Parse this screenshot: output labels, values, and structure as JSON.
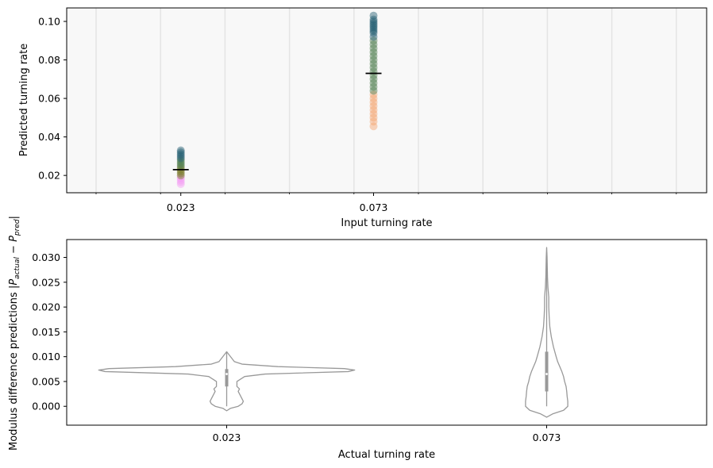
{
  "chart_data": [
    {
      "type": "scatter",
      "xlabel": "Input turning rate",
      "ylabel": "Predicted turning rate",
      "ylim": [
        0.011,
        0.107
      ],
      "yticks": [
        "0.02",
        "0.04",
        "0.06",
        "0.08",
        "0.10"
      ],
      "ytick_values": [
        0.02,
        0.04,
        0.06,
        0.08,
        0.1
      ],
      "xlim": [
        -0.0066,
        0.1594
      ],
      "xticks": [
        "0.023",
        "0.073"
      ],
      "xtick_values": [
        0.023,
        0.073
      ],
      "grid": "vertical",
      "series": [
        {
          "x": 0.023,
          "mean": 0.023,
          "values": [
            0.0155,
            0.0165,
            0.0175,
            0.0185,
            0.019,
            0.02,
            0.021,
            0.022,
            0.023,
            0.024,
            0.025,
            0.026,
            0.027,
            0.028,
            0.029,
            0.03,
            0.031,
            0.032,
            0.033
          ]
        },
        {
          "x": 0.073,
          "mean": 0.073,
          "values": [
            0.0455,
            0.048,
            0.05,
            0.052,
            0.054,
            0.056,
            0.058,
            0.06,
            0.062,
            0.064,
            0.066,
            0.068,
            0.07,
            0.072,
            0.074,
            0.076,
            0.078,
            0.08,
            0.082,
            0.084,
            0.086,
            0.088,
            0.09,
            0.092,
            0.094,
            0.095,
            0.096,
            0.097,
            0.098,
            0.099,
            0.1,
            0.101,
            0.103
          ]
        }
      ],
      "colors": {
        "low": "#f4a0f4",
        "olive": "#7a7a2a",
        "teal": "#1f5a6e",
        "green": "#4a7a4a",
        "orange": "#f4a26c",
        "mean_line": "#000000",
        "background": "#f8f8f8",
        "grid": "#e4e4e4"
      }
    },
    {
      "type": "violin",
      "xlabel": "Actual turning rate",
      "ylabel": "Modulus difference predictions |P_actual − P_pred|",
      "ylabel_parts": {
        "prefix": "Modulus difference predictions |",
        "p1": "P",
        "sub1": "actual",
        "minus": " − ",
        "p2": "P",
        "sub2": "pred",
        "suffix": "|"
      },
      "ylim": [
        -0.0038,
        0.0336
      ],
      "yticks": [
        "0.000",
        "0.005",
        "0.010",
        "0.015",
        "0.020",
        "0.025",
        "0.030"
      ],
      "ytick_values": [
        0,
        0.005,
        0.01,
        0.015,
        0.02,
        0.025,
        0.03
      ],
      "categories": [
        "0.023",
        "0.073"
      ],
      "violins": [
        {
          "category": "0.023",
          "profile": [
            [
              -0.0009,
              0
            ],
            [
              -0.0004,
              0.03
            ],
            [
              0.0,
              0.09
            ],
            [
              0.0005,
              0.12
            ],
            [
              0.001,
              0.13
            ],
            [
              0.002,
              0.11
            ],
            [
              0.003,
              0.09
            ],
            [
              0.0035,
              0.1
            ],
            [
              0.004,
              0.08
            ],
            [
              0.005,
              0.08
            ],
            [
              0.006,
              0.14
            ],
            [
              0.0065,
              0.3
            ],
            [
              0.007,
              0.95
            ],
            [
              0.0073,
              1.0
            ],
            [
              0.0076,
              0.92
            ],
            [
              0.008,
              0.4
            ],
            [
              0.0085,
              0.12
            ],
            [
              0.009,
              0.06
            ],
            [
              0.01,
              0.03
            ],
            [
              0.011,
              0
            ]
          ],
          "max_halfwidth_frac": 0.2,
          "quartiles": [
            0.004,
            0.0075
          ],
          "median": 0.0065,
          "whisker": [
            0.0,
            0.011
          ]
        },
        {
          "category": "0.073",
          "profile": [
            [
              -0.0022,
              0
            ],
            [
              -0.0015,
              0.3
            ],
            [
              -0.0008,
              0.8
            ],
            [
              0.0,
              1.0
            ],
            [
              0.001,
              1.0
            ],
            [
              0.002,
              0.97
            ],
            [
              0.003,
              0.95
            ],
            [
              0.004,
              0.92
            ],
            [
              0.005,
              0.85
            ],
            [
              0.006,
              0.8
            ],
            [
              0.007,
              0.72
            ],
            [
              0.008,
              0.62
            ],
            [
              0.009,
              0.52
            ],
            [
              0.01,
              0.45
            ],
            [
              0.012,
              0.32
            ],
            [
              0.014,
              0.22
            ],
            [
              0.016,
              0.15
            ],
            [
              0.018,
              0.12
            ],
            [
              0.02,
              0.1
            ],
            [
              0.022,
              0.1
            ],
            [
              0.024,
              0.06
            ],
            [
              0.026,
              0.04
            ],
            [
              0.028,
              0.03
            ],
            [
              0.03,
              0.02
            ],
            [
              0.032,
              0
            ]
          ],
          "max_halfwidth_frac": 0.033,
          "quartiles": [
            0.003,
            0.011
          ],
          "median": 0.0065,
          "whisker": [
            0.0,
            0.031
          ]
        }
      ],
      "colors": {
        "violin": "#999999",
        "box": "#999999",
        "median": "#ffffff"
      }
    }
  ]
}
